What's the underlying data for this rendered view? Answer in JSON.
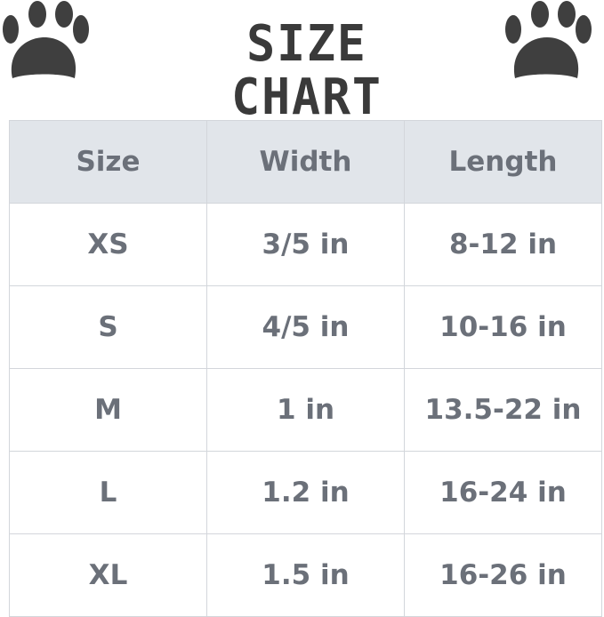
{
  "title": "SIZE CHART",
  "icons": {
    "left": "paw-print-icon",
    "right": "paw-print-icon"
  },
  "colors": {
    "header_bg": "#e1e5ea",
    "text": "#6b7079",
    "title": "#3a3a3a",
    "paw": "#3f3f3f"
  },
  "table": {
    "headers": [
      "Size",
      "Width",
      "Length"
    ],
    "rows": [
      [
        "XS",
        "3/5 in",
        "8-12 in"
      ],
      [
        "S",
        "4/5 in",
        "10-16 in"
      ],
      [
        "M",
        "1 in",
        "13.5-22 in"
      ],
      [
        "L",
        "1.2 in",
        "16-24 in"
      ],
      [
        "XL",
        "1.5 in",
        "16-26 in"
      ]
    ]
  }
}
